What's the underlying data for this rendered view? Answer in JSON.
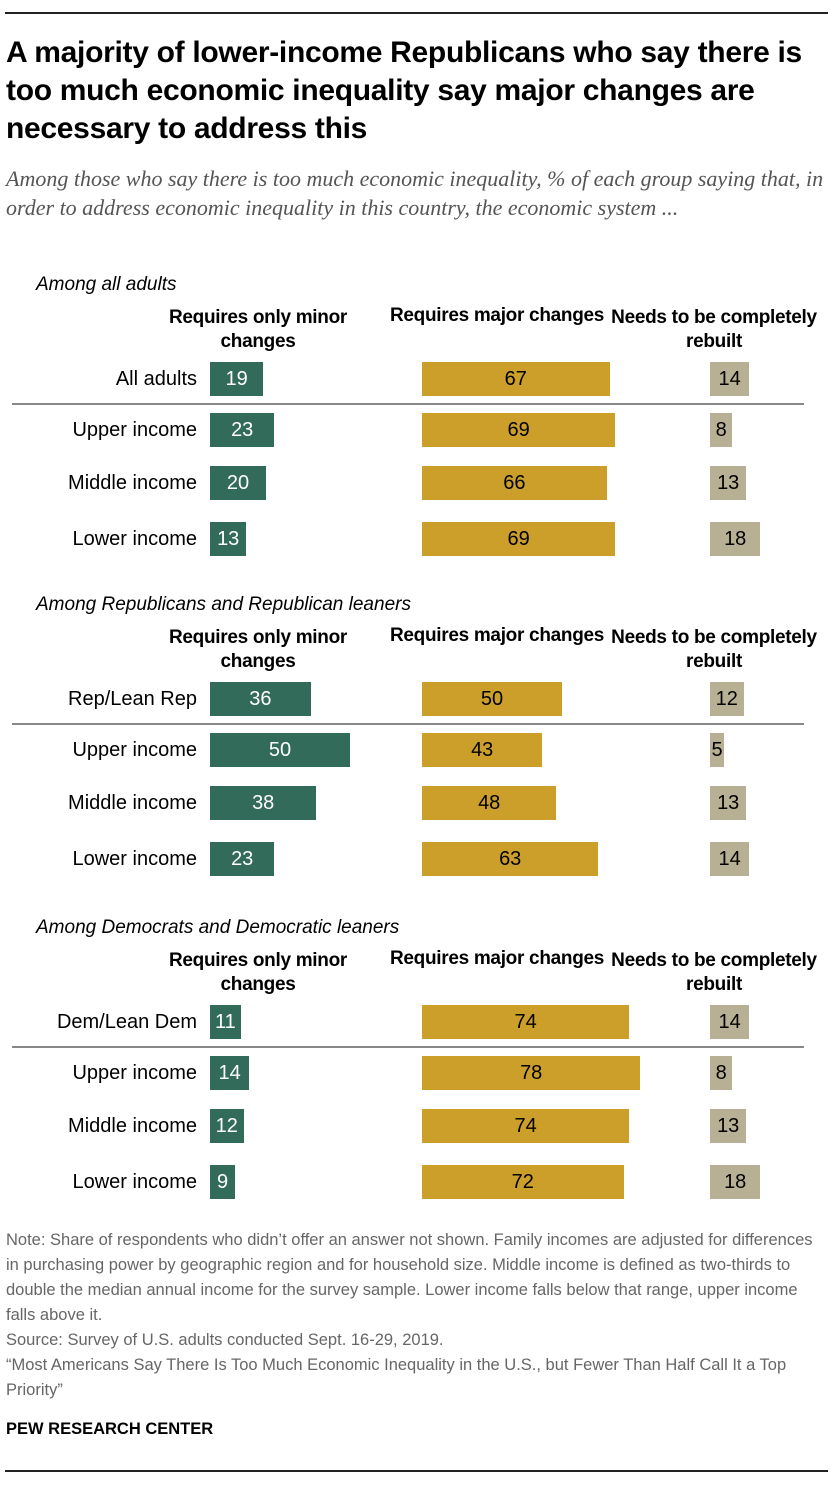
{
  "title": "A majority of lower-income Republicans who say there is too much economic inequality say major changes are necessary to address this",
  "subtitle": "Among those who say there is too much economic inequality, % of each group saying that, in order to address economic inequality in this country, the economic system ...",
  "chart_data": {
    "type": "bar",
    "orientation": "horizontal",
    "series_labels": [
      "Requires only minor changes",
      "Requires major changes",
      "Needs to be completely rebuilt"
    ],
    "colors": [
      "#336b5a",
      "#cc9f2b",
      "#b8b095"
    ],
    "panels": [
      {
        "label": "Among all adults",
        "categories": [
          "All adults",
          "Upper income",
          "Middle income",
          "Lower income"
        ],
        "values": [
          [
            19,
            67,
            14
          ],
          [
            23,
            69,
            8
          ],
          [
            20,
            66,
            13
          ],
          [
            13,
            69,
            18
          ]
        ]
      },
      {
        "label": "Among Republicans and Republican leaners",
        "categories": [
          "Rep/Lean Rep",
          "Upper income",
          "Middle income",
          "Lower income"
        ],
        "values": [
          [
            36,
            50,
            12
          ],
          [
            50,
            43,
            5
          ],
          [
            38,
            48,
            13
          ],
          [
            23,
            63,
            14
          ]
        ]
      },
      {
        "label": "Among Democrats and Democratic leaners",
        "categories": [
          "Dem/Lean Dem",
          "Upper income",
          "Middle income",
          "Lower income"
        ],
        "values": [
          [
            11,
            74,
            14
          ],
          [
            14,
            78,
            8
          ],
          [
            12,
            74,
            13
          ],
          [
            9,
            72,
            18
          ]
        ]
      }
    ]
  },
  "notes": [
    "Note: Share of respondents who didn’t offer an answer not shown. Family incomes are adjusted for differences in purchasing power by geographic region and for household size. Middle income is defined as two-thirds to double the median annual income for the survey sample. Lower income falls below that range, upper income falls above it.",
    "Source: Survey of U.S. adults conducted Sept. 16-29, 2019.",
    "“Most Americans Say There Is Too Much Economic Inequality in the U.S., but Fewer Than Half Call It a Top Priority”"
  ],
  "brand": "PEW RESEARCH CENTER"
}
